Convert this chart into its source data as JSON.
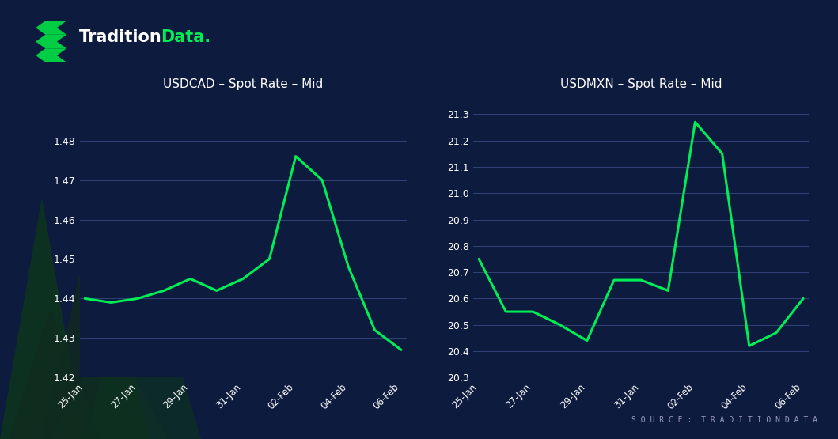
{
  "background_color": "#0d1b3e",
  "line_color": "#00ee55",
  "grid_color": "#5566aa",
  "title_color": "#ffffff",
  "tick_color": "#ffffff",
  "title1": "USDCAD – Spot Rate – Mid",
  "title2": "USDMXN – Spot Rate – Mid",
  "source_text": "S O U R C E :  T R A D I T I O N D A T A",
  "logo_white": "Tradition",
  "logo_green": "Data.",
  "x_labels": [
    "25-Jan",
    "27-Jan",
    "29-Jan",
    "31-Jan",
    "02-Feb",
    "04-Feb",
    "06-Feb"
  ],
  "usdcad_x": [
    0,
    1,
    2,
    3,
    4,
    5,
    6,
    7,
    8,
    9,
    10,
    11,
    12
  ],
  "usdcad_y": [
    1.44,
    1.439,
    1.44,
    1.442,
    1.445,
    1.442,
    1.445,
    1.45,
    1.476,
    1.47,
    1.448,
    1.432,
    1.427
  ],
  "usdcad_x_ticks": [
    0,
    2,
    4,
    6,
    8,
    10,
    12
  ],
  "usdcad_ylim": [
    1.42,
    1.49
  ],
  "usdcad_yticks": [
    1.42,
    1.43,
    1.44,
    1.45,
    1.46,
    1.47,
    1.48
  ],
  "usdmxn_x": [
    0,
    1,
    2,
    3,
    4,
    5,
    6,
    7,
    8,
    9,
    10,
    11,
    12
  ],
  "usdmxn_y": [
    20.75,
    20.55,
    20.55,
    20.5,
    20.44,
    20.67,
    20.67,
    20.63,
    21.27,
    21.15,
    20.42,
    20.47,
    20.6
  ],
  "usdmxn_x_ticks": [
    0,
    2,
    4,
    6,
    8,
    10,
    12
  ],
  "usdmxn_ylim": [
    20.3,
    21.35
  ],
  "usdmxn_yticks": [
    20.3,
    20.4,
    20.5,
    20.6,
    20.7,
    20.8,
    20.9,
    21.0,
    21.1,
    21.2,
    21.3
  ],
  "tri_color": "#0d3320",
  "tri_color2": "#102a1e"
}
